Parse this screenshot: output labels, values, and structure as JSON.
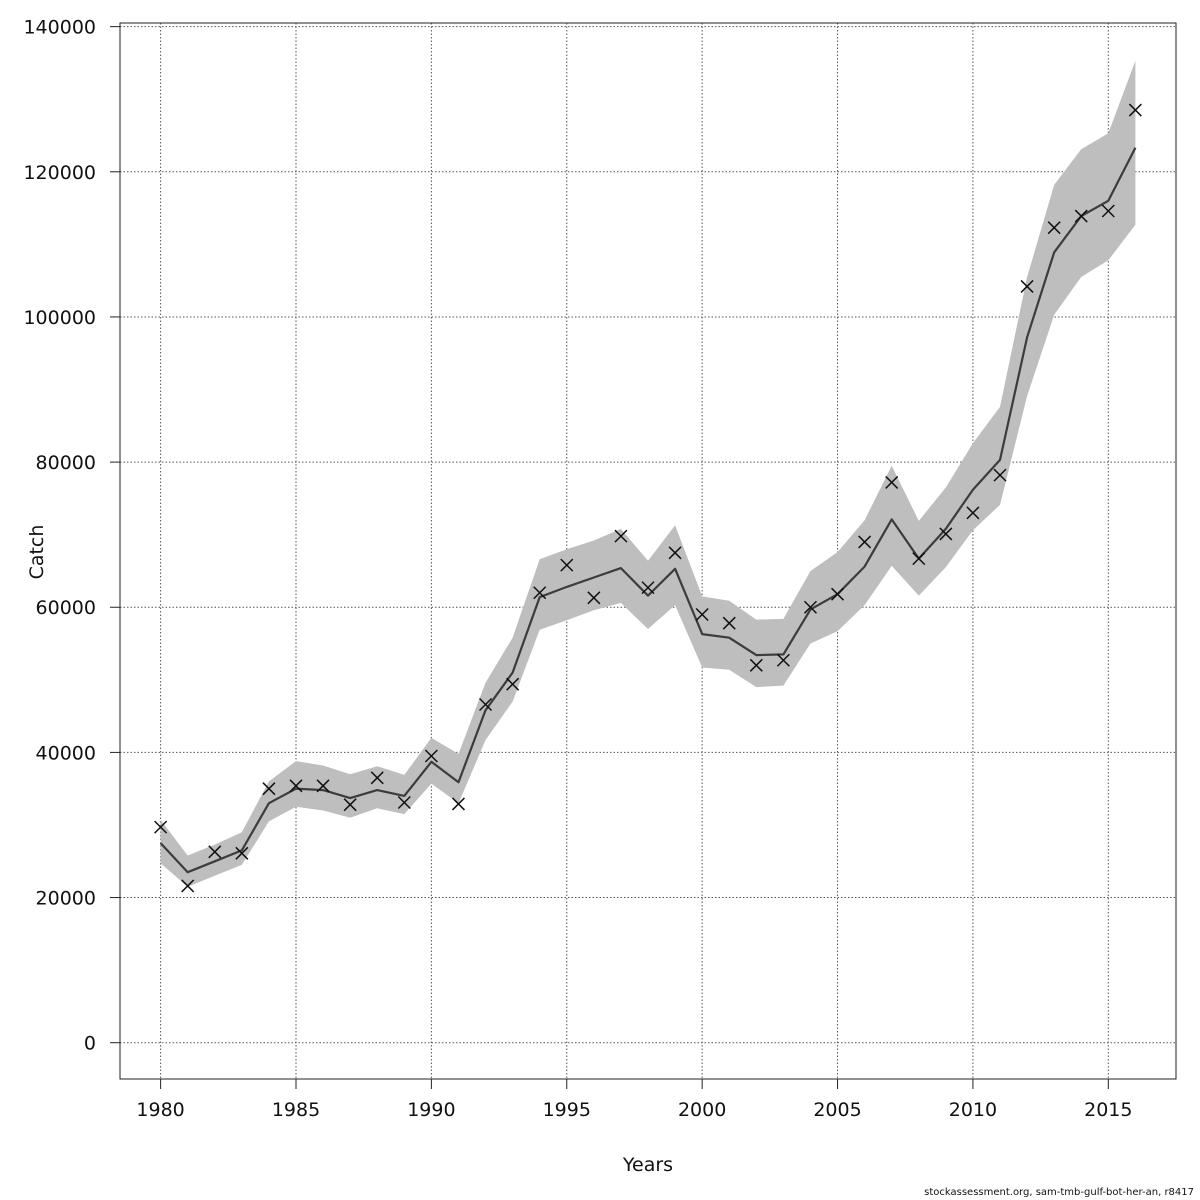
{
  "chart_data": {
    "type": "line",
    "title": "",
    "xlabel": "Years",
    "ylabel": "Catch",
    "xlim": [
      1978.5,
      2017.5
    ],
    "ylim": [
      -5000,
      140500
    ],
    "x_ticks": [
      1980,
      1985,
      1990,
      1995,
      2000,
      2005,
      2010,
      2015
    ],
    "y_ticks": [
      0,
      20000,
      40000,
      60000,
      80000,
      100000,
      120000,
      140000
    ],
    "grid": true,
    "legend": "none",
    "colors": {
      "band": "#bebebe",
      "line": "#3c3c3c",
      "marker": "#111111",
      "grid": "#555555"
    },
    "x": [
      1980,
      1981,
      1982,
      1983,
      1984,
      1985,
      1986,
      1987,
      1988,
      1989,
      1990,
      1991,
      1992,
      1993,
      1994,
      1995,
      1996,
      1997,
      1998,
      1999,
      2000,
      2001,
      2002,
      2003,
      2004,
      2005,
      2006,
      2007,
      2008,
      2009,
      2010,
      2011,
      2012,
      2013,
      2014,
      2015,
      2016
    ],
    "series": [
      {
        "type": "line",
        "values": [
          27500,
          23500,
          25000,
          26500,
          33000,
          35000,
          34800,
          33700,
          34800,
          34000,
          38700,
          35900,
          45800,
          51000,
          61400,
          62800,
          64100,
          65400,
          61600,
          65300,
          56300,
          55800,
          53400,
          53500,
          59700,
          61800,
          65600,
          72100,
          66700,
          70800,
          76200,
          80300,
          97200,
          108900,
          113900,
          116000,
          123300
        ]
      },
      {
        "type": "band_lower",
        "values": [
          24700,
          21500,
          23000,
          24500,
          30500,
          32500,
          32000,
          31000,
          32300,
          31500,
          35700,
          33000,
          41700,
          47000,
          56900,
          58200,
          59600,
          60600,
          57000,
          60300,
          51700,
          51400,
          49000,
          49200,
          55000,
          56700,
          60300,
          65700,
          61600,
          65500,
          70600,
          74100,
          89100,
          100300,
          105500,
          107800,
          112700
        ]
      },
      {
        "type": "band_upper",
        "values": [
          30700,
          25800,
          27300,
          29000,
          36000,
          38800,
          38200,
          37000,
          38100,
          36900,
          42000,
          39800,
          49600,
          55800,
          66600,
          68000,
          69200,
          70800,
          66400,
          71300,
          61500,
          60900,
          58300,
          58400,
          65000,
          67600,
          72000,
          79500,
          71900,
          76500,
          82600,
          87600,
          105500,
          118200,
          123100,
          125300,
          135300
        ]
      },
      {
        "type": "observed",
        "values": [
          29700,
          21600,
          26300,
          26100,
          35000,
          35400,
          35400,
          32800,
          36500,
          33100,
          39500,
          32900,
          46600,
          49400,
          62000,
          65800,
          61300,
          69800,
          62700,
          67500,
          59000,
          57800,
          52000,
          52700,
          60000,
          61800,
          69000,
          77200,
          66700,
          70100,
          73000,
          78200,
          104200,
          112300,
          113900,
          114600,
          128500
        ]
      }
    ]
  },
  "footer": {
    "credit": "stockassessment.org, sam-tmb-gulf-bot-her-an, r8417"
  }
}
